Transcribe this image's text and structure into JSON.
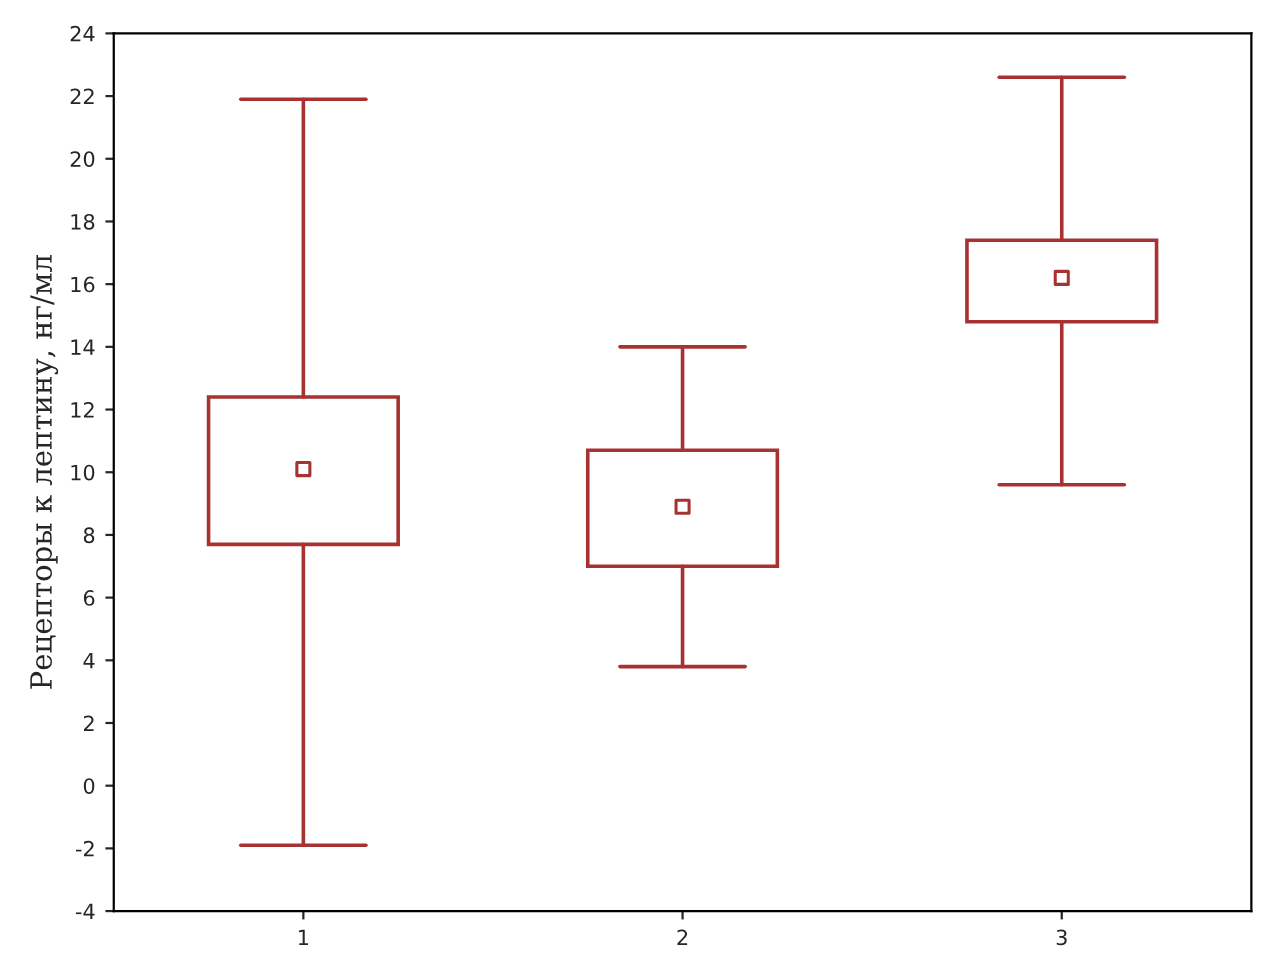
{
  "chart_data": {
    "type": "box",
    "ylabel": "Рецепторы к лептину, нг/мл",
    "categories": [
      "1",
      "2",
      "3"
    ],
    "color": "#a83232",
    "marker": "square",
    "boxes": [
      {
        "low": -1.9,
        "q1": 7.7,
        "median": 10.1,
        "q3": 12.4,
        "high": 21.9
      },
      {
        "low": 3.8,
        "q1": 7.0,
        "median": 8.9,
        "q3": 10.7,
        "high": 14.0
      },
      {
        "low": 9.6,
        "q1": 14.8,
        "median": 16.2,
        "q3": 17.4,
        "high": 22.6
      }
    ],
    "ylim": [
      -4,
      24
    ],
    "yticks": [
      -4,
      -2,
      0,
      2,
      4,
      6,
      8,
      10,
      12,
      14,
      16,
      18,
      20,
      22,
      24
    ],
    "grid": false
  }
}
